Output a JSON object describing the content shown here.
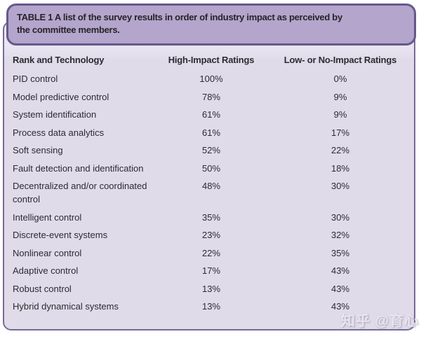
{
  "colors": {
    "header_bg": "#b3a5cb",
    "header_border": "#66588a",
    "body_bg": "#dfdbe9",
    "body_bg_top": "#e9e5f1",
    "body_border": "#79699a",
    "text": "#2e2a32",
    "title_text": "#272329",
    "watermark_color": "rgba(245, 242, 248, 0.78)"
  },
  "caption": {
    "line1": "TABLE 1 A list of the survey results in order of industry impact as perceived by",
    "line2": "the committee members."
  },
  "table": {
    "columns": [
      "Rank and Technology",
      "High-Impact Ratings",
      "Low- or No-Impact Ratings"
    ],
    "rows": [
      {
        "technology": "PID control",
        "high_impact": "100%",
        "low_impact": "0%"
      },
      {
        "technology": "Model predictive control",
        "high_impact": "78%",
        "low_impact": "9%"
      },
      {
        "technology": "System identification",
        "high_impact": "61%",
        "low_impact": "9%"
      },
      {
        "technology": "Process data analytics",
        "high_impact": "61%",
        "low_impact": "17%"
      },
      {
        "technology": "Soft sensing",
        "high_impact": "52%",
        "low_impact": "22%"
      },
      {
        "technology": "Fault detection and identification",
        "high_impact": "50%",
        "low_impact": "18%"
      },
      {
        "technology": "Decentralized and/or coordinated control",
        "high_impact": "48%",
        "low_impact": "30%"
      },
      {
        "technology": "Intelligent control",
        "high_impact": "35%",
        "low_impact": "30%"
      },
      {
        "technology": "Discrete-event systems",
        "high_impact": "23%",
        "low_impact": "32%"
      },
      {
        "technology": "Nonlinear control",
        "high_impact": "22%",
        "low_impact": "35%"
      },
      {
        "technology": "Adaptive control",
        "high_impact": "17%",
        "low_impact": "43%"
      },
      {
        "technology": "Robust control",
        "high_impact": "13%",
        "low_impact": "43%"
      },
      {
        "technology": "Hybrid dynamical systems",
        "high_impact": "13%",
        "low_impact": "43%"
      }
    ]
  },
  "watermark": {
    "text": "知乎 @育心"
  },
  "chart_data": {
    "type": "table",
    "title": "TABLE 1 A list of the survey results in order of industry impact as perceived by the committee members.",
    "columns": [
      "Rank and Technology",
      "High-Impact Ratings",
      "Low- or No-Impact Ratings"
    ],
    "rows": [
      [
        "PID control",
        100,
        0
      ],
      [
        "Model predictive control",
        78,
        9
      ],
      [
        "System identification",
        61,
        9
      ],
      [
        "Process data analytics",
        61,
        17
      ],
      [
        "Soft sensing",
        52,
        22
      ],
      [
        "Fault detection and identification",
        50,
        18
      ],
      [
        "Decentralized and/or coordinated control",
        48,
        30
      ],
      [
        "Intelligent control",
        35,
        30
      ],
      [
        "Discrete-event systems",
        23,
        32
      ],
      [
        "Nonlinear control",
        22,
        35
      ],
      [
        "Adaptive control",
        17,
        43
      ],
      [
        "Robust control",
        13,
        43
      ],
      [
        "Hybrid dynamical systems",
        13,
        43
      ]
    ],
    "units": "percent"
  }
}
